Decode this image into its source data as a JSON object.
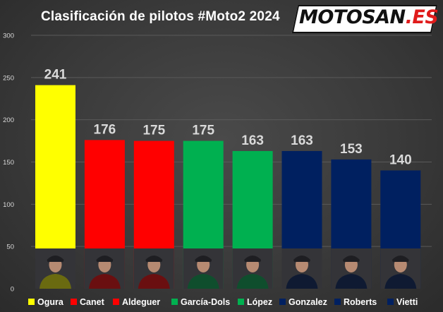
{
  "chart_data": {
    "type": "bar",
    "title": "Clasificación de pilotos #Moto2 2024",
    "categories": [
      "Ogura",
      "Canet",
      "Aldeguer",
      "García-Dols",
      "López",
      "Gonzalez",
      "Roberts",
      "Vietti"
    ],
    "values": [
      241,
      176,
      175,
      175,
      163,
      163,
      153,
      140
    ],
    "colors": [
      "#ffff00",
      "#ff0000",
      "#ff0000",
      "#00b050",
      "#00b050",
      "#002060",
      "#002060",
      "#002060"
    ],
    "ylim": [
      0,
      300
    ],
    "yticks": [
      0,
      50,
      100,
      150,
      200,
      250,
      300
    ],
    "grid": true,
    "legend_position": "bottom",
    "rider_photos_shown": true
  },
  "logo": {
    "part1": "MOTOSAN",
    "part2": ".ES"
  },
  "colors": {
    "background": "#3a3a3a",
    "gridline": "#5a5a5a",
    "label_text": "#d9d9d9",
    "legend_text": "#ffffff"
  }
}
